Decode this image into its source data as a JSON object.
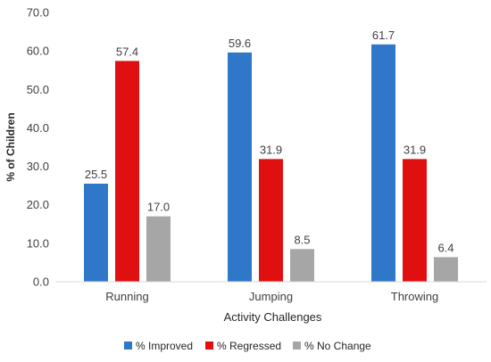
{
  "chart_data": {
    "type": "bar",
    "title": "",
    "xlabel": "Activity Challenges",
    "ylabel": "% of Children",
    "ylim": [
      0,
      70
    ],
    "y_ticks": [
      "0.0",
      "10.0",
      "20.0",
      "30.0",
      "40.0",
      "50.0",
      "60.0",
      "70.0"
    ],
    "grid": false,
    "legend_position": "bottom",
    "categories": [
      "Running",
      "Jumping",
      "Throwing"
    ],
    "series": [
      {
        "name": "% Improved",
        "color": "#2f78c9",
        "values": [
          25.5,
          59.6,
          61.7
        ],
        "labels": [
          "25.5",
          "59.6",
          "61.7"
        ]
      },
      {
        "name": "% Regressed",
        "color": "#e01010",
        "values": [
          57.4,
          31.9,
          31.9
        ],
        "labels": [
          "57.4",
          "31.9",
          "31.9"
        ]
      },
      {
        "name": "% No Change",
        "color": "#a6a6a6",
        "values": [
          17.0,
          8.5,
          6.4
        ],
        "labels": [
          "17.0",
          "8.5",
          "6.4"
        ]
      }
    ]
  }
}
